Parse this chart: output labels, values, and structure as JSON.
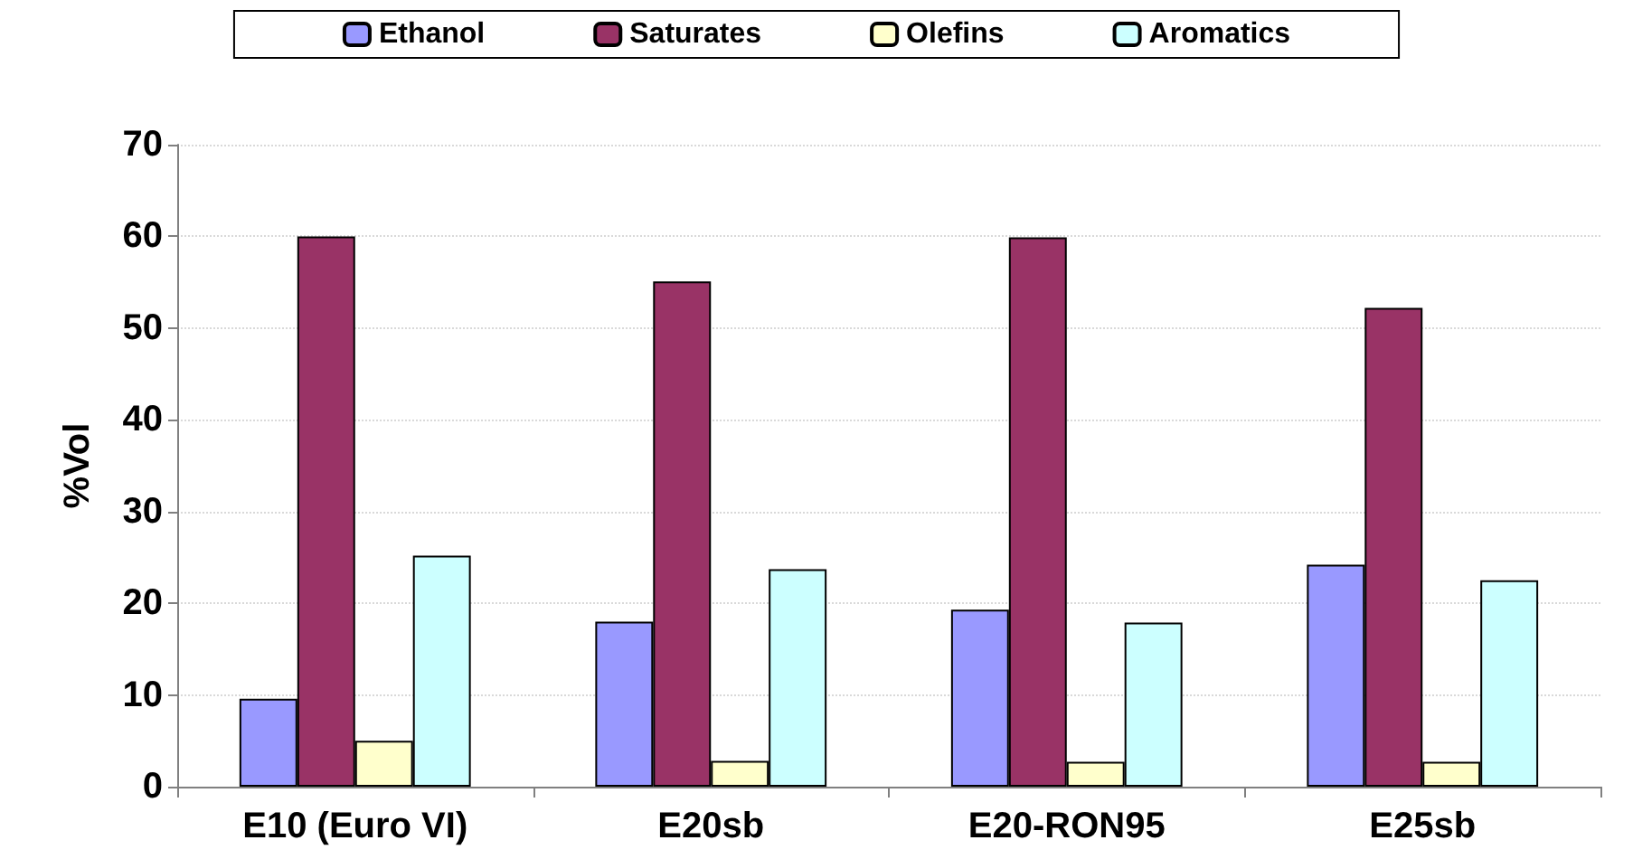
{
  "chart_data": {
    "type": "bar",
    "ylabel": "%Vol",
    "categories": [
      "E10 (Euro VI)",
      "E20sb",
      "E20-RON95",
      "E25sb"
    ],
    "series": [
      {
        "name": "Ethanol",
        "color": "#9999ff",
        "values": [
          9.6,
          18.0,
          19.3,
          24.2
        ]
      },
      {
        "name": "Saturates",
        "color": "#993366",
        "values": [
          60.0,
          55.1,
          59.9,
          52.2
        ]
      },
      {
        "name": "Olefins",
        "color": "#ffffcc",
        "values": [
          5.0,
          2.8,
          2.7,
          2.7
        ]
      },
      {
        "name": "Aromatics",
        "color": "#ccffff",
        "values": [
          25.2,
          23.7,
          17.9,
          22.5
        ]
      }
    ],
    "ylim": [
      0,
      70
    ],
    "yticks": [
      0,
      10,
      20,
      30,
      40,
      50,
      60,
      70
    ],
    "grid": "y",
    "legend": "top"
  }
}
